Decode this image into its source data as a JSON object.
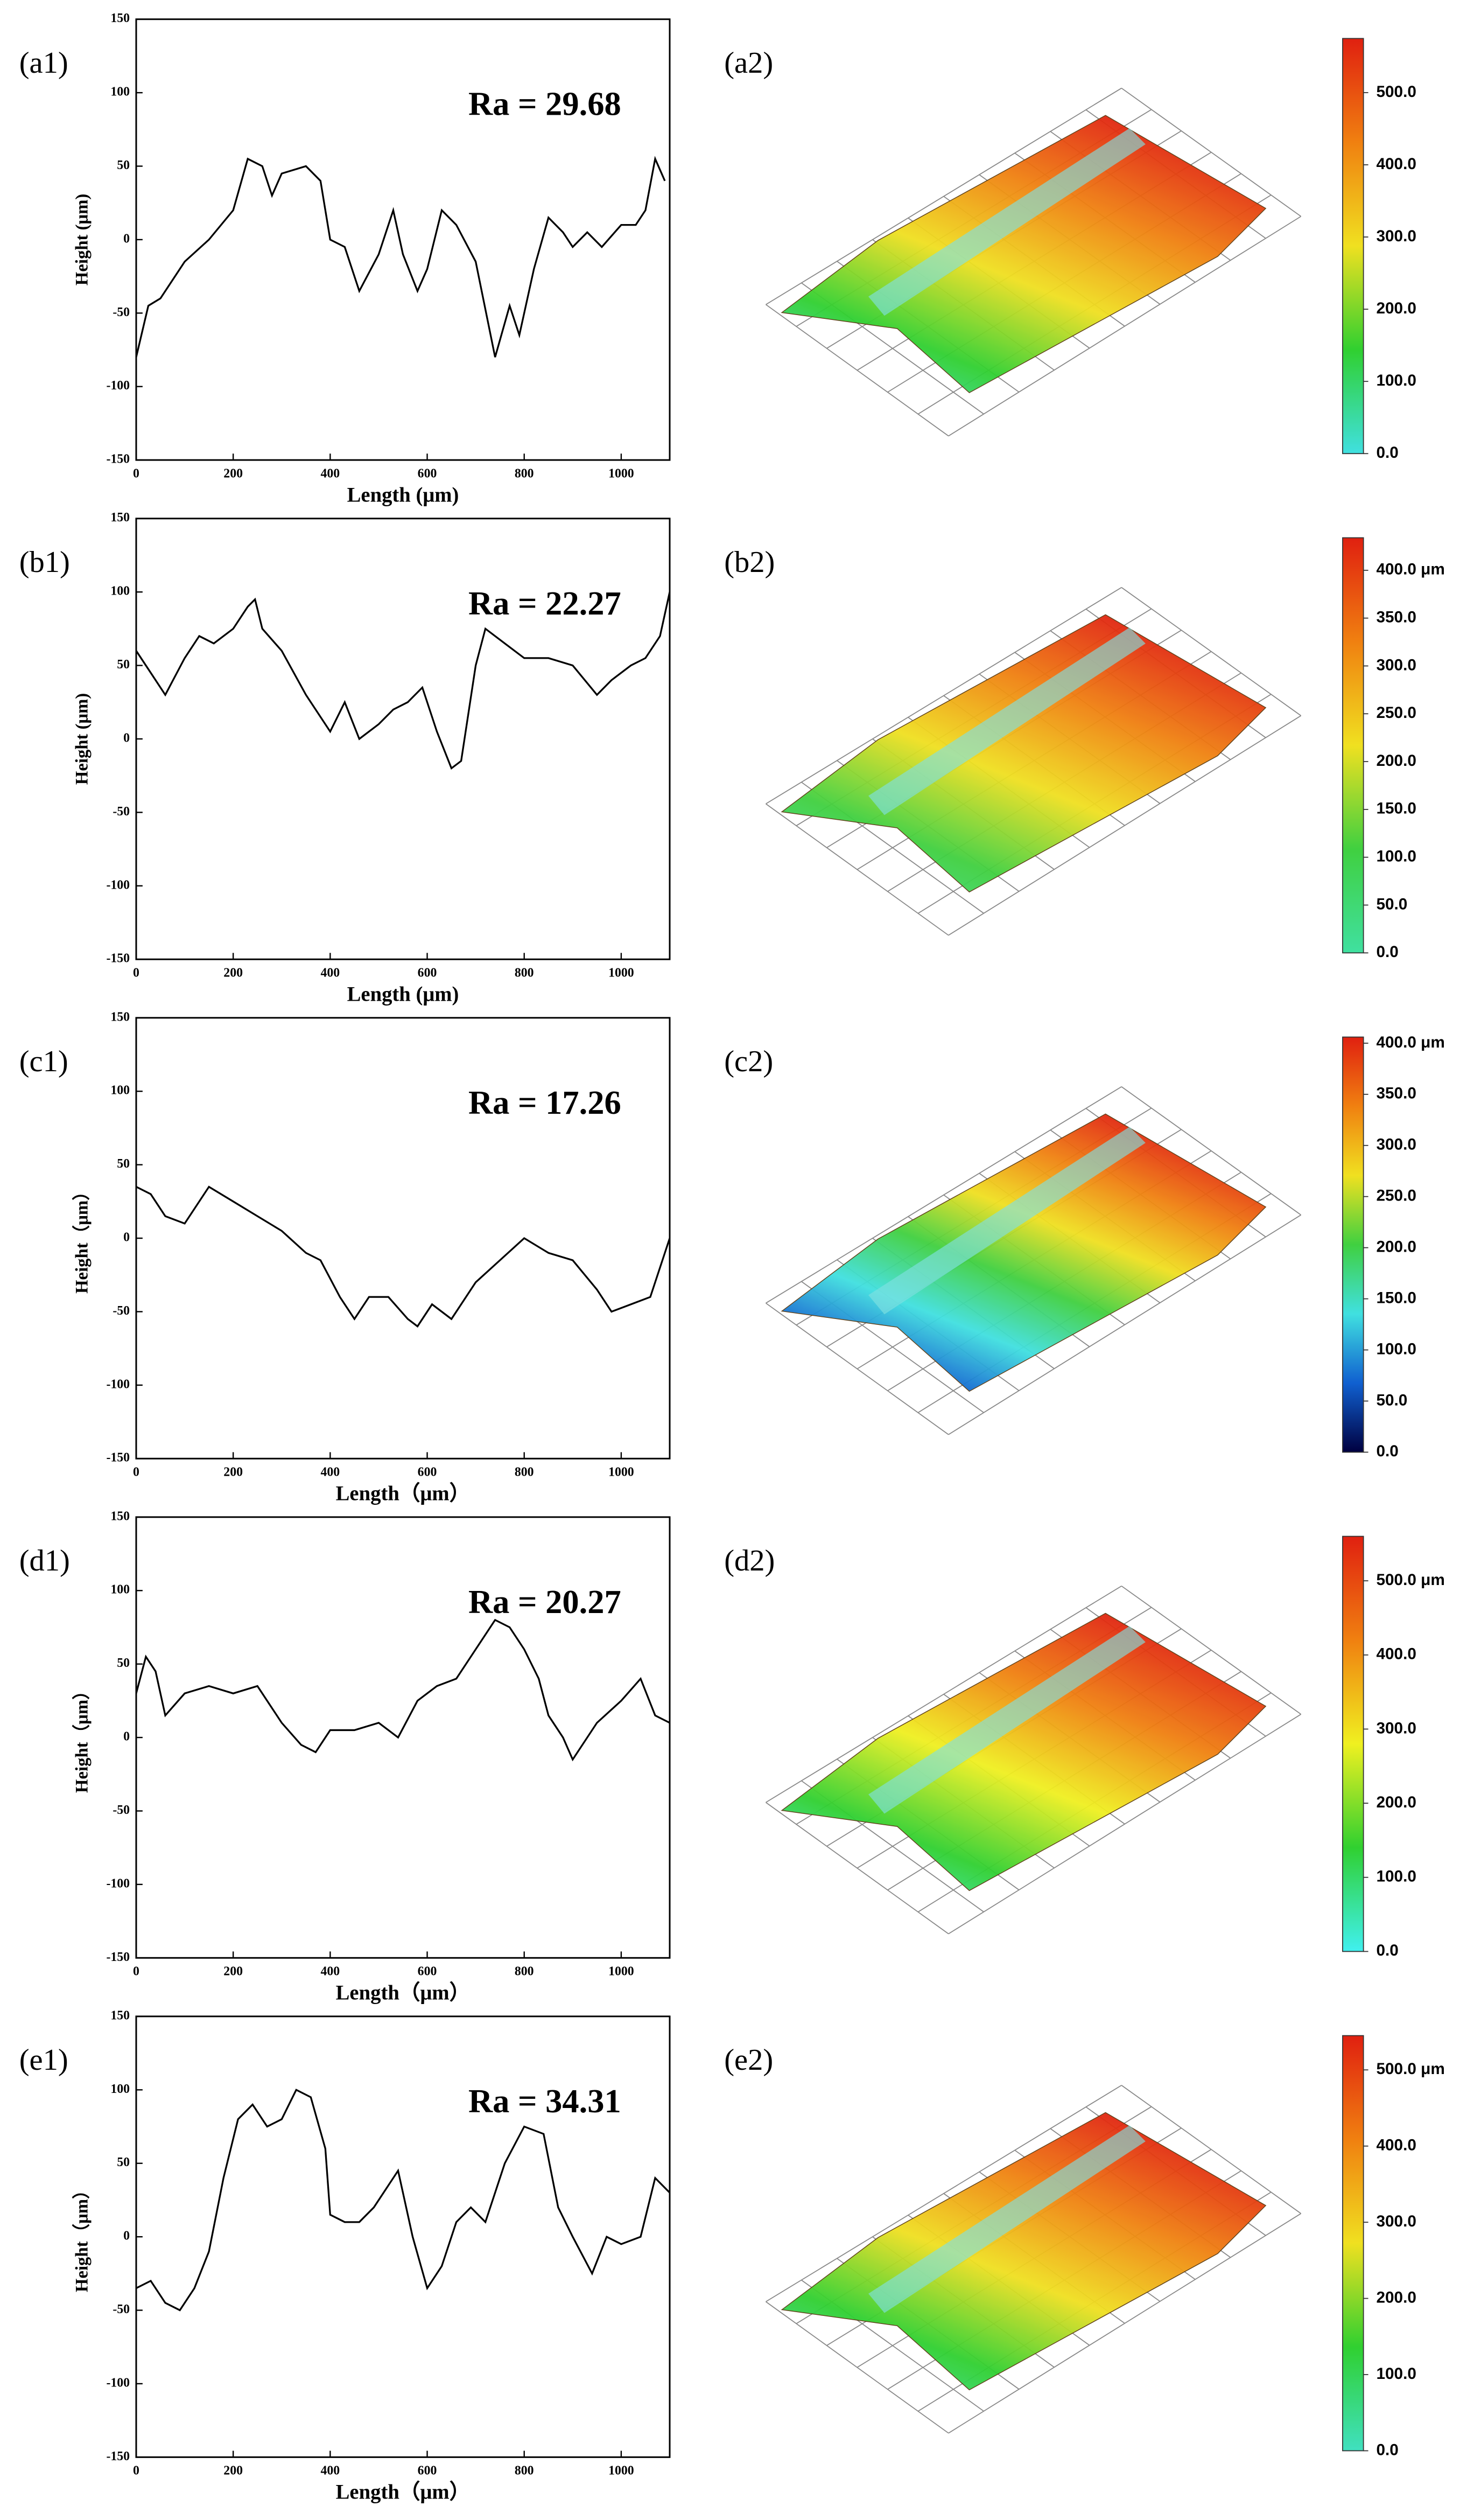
{
  "chart_data": [
    {
      "type": "line",
      "label": "(a1)",
      "annotation": "Ra = 29.68",
      "xlabel": "Length (μm)",
      "ylabel": "Height (μm)",
      "color": "#000000",
      "xlim": [
        0,
        1100
      ],
      "xticks": [
        0,
        200,
        400,
        600,
        800,
        1000
      ],
      "ylim": [
        -150,
        150
      ],
      "yticks": [
        -150,
        -100,
        -50,
        0,
        50,
        100,
        150
      ],
      "x": [
        0,
        25,
        50,
        100,
        150,
        200,
        230,
        260,
        280,
        300,
        350,
        380,
        400,
        430,
        460,
        500,
        530,
        550,
        580,
        600,
        630,
        660,
        700,
        740,
        770,
        790,
        820,
        850,
        880,
        900,
        930,
        960,
        1000,
        1030,
        1050,
        1070,
        1090
      ],
      "values": [
        -80,
        -45,
        -40,
        -15,
        0,
        20,
        55,
        50,
        30,
        45,
        50,
        40,
        0,
        -5,
        -35,
        -10,
        20,
        -10,
        -35,
        -20,
        20,
        10,
        -15,
        -80,
        -45,
        -65,
        -20,
        15,
        5,
        -5,
        5,
        -5,
        10,
        10,
        20,
        55,
        40
      ]
    },
    {
      "type": "surface",
      "label": "(a2)",
      "colors": [
        "#40e0e0",
        "#30d030",
        "#f0e020",
        "#f08010",
        "#e02010"
      ],
      "ylim": [
        0,
        575
      ],
      "yticks": [
        {
          "value": 0,
          "label": "0.0"
        },
        {
          "value": 100,
          "label": "100.0"
        },
        {
          "value": 200,
          "label": "200.0"
        },
        {
          "value": 300,
          "label": "300.0"
        },
        {
          "value": 400,
          "label": "400.0"
        },
        {
          "value": 500,
          "label": "500.0"
        }
      ]
    },
    {
      "type": "line",
      "label": "(b1)",
      "annotation": "Ra = 22.27",
      "xlabel": "Length (μm)",
      "ylabel": "Height (μm)",
      "color": "#000000",
      "xlim": [
        0,
        1100
      ],
      "xticks": [
        0,
        200,
        400,
        600,
        800,
        1000
      ],
      "ylim": [
        -150,
        150
      ],
      "yticks": [
        -150,
        -100,
        -50,
        0,
        50,
        100,
        150
      ],
      "x": [
        0,
        30,
        60,
        100,
        130,
        160,
        200,
        230,
        245,
        260,
        300,
        350,
        400,
        430,
        460,
        500,
        530,
        560,
        590,
        620,
        650,
        670,
        700,
        720,
        760,
        800,
        850,
        900,
        950,
        980,
        1020,
        1050,
        1080,
        1100
      ],
      "values": [
        60,
        45,
        30,
        55,
        70,
        65,
        75,
        90,
        95,
        75,
        60,
        30,
        5,
        25,
        0,
        10,
        20,
        25,
        35,
        5,
        -20,
        -15,
        50,
        75,
        65,
        55,
        55,
        50,
        30,
        40,
        50,
        55,
        70,
        100
      ]
    },
    {
      "type": "surface",
      "label": "(b2)",
      "colors": [
        "#40e0a0",
        "#40d040",
        "#f0e020",
        "#f08010",
        "#e02010"
      ],
      "ylim": [
        0,
        434
      ],
      "yticks": [
        {
          "value": 0,
          "label": "0.0"
        },
        {
          "value": 50,
          "label": "50.0"
        },
        {
          "value": 100,
          "label": "100.0"
        },
        {
          "value": 150,
          "label": "150.0"
        },
        {
          "value": 200,
          "label": "200.0"
        },
        {
          "value": 250,
          "label": "250.0"
        },
        {
          "value": 300,
          "label": "300.0"
        },
        {
          "value": 350,
          "label": "350.0"
        },
        {
          "value": 400,
          "label": "400.0 μm"
        }
      ]
    },
    {
      "type": "line",
      "label": "(c1)",
      "annotation": "Ra = 17.26",
      "xlabel": "Length（μm）",
      "ylabel": "Height（μm）",
      "color": "#000000",
      "xlim": [
        0,
        1100
      ],
      "xticks": [
        0,
        200,
        400,
        600,
        800,
        1000
      ],
      "ylim": [
        -150,
        150
      ],
      "yticks": [
        -150,
        -100,
        -50,
        0,
        50,
        100,
        150
      ],
      "x": [
        0,
        30,
        60,
        100,
        150,
        200,
        250,
        300,
        350,
        380,
        420,
        450,
        480,
        520,
        560,
        580,
        610,
        650,
        700,
        750,
        800,
        850,
        900,
        950,
        980,
        1020,
        1060,
        1100
      ],
      "values": [
        35,
        30,
        15,
        10,
        35,
        25,
        15,
        5,
        -10,
        -15,
        -40,
        -55,
        -40,
        -40,
        -55,
        -60,
        -45,
        -55,
        -30,
        -15,
        0,
        -10,
        -15,
        -35,
        -50,
        -45,
        -40,
        0
      ]
    },
    {
      "type": "surface",
      "label": "(c2)",
      "colors": [
        "#000040",
        "#1060d0",
        "#40e0e0",
        "#40d040",
        "#f0e020",
        "#f08010",
        "#e02010"
      ],
      "ylim": [
        0,
        406
      ],
      "yticks": [
        {
          "value": 0,
          "label": "0.0"
        },
        {
          "value": 50,
          "label": "50.0"
        },
        {
          "value": 100,
          "label": "100.0"
        },
        {
          "value": 150,
          "label": "150.0"
        },
        {
          "value": 200,
          "label": "200.0"
        },
        {
          "value": 250,
          "label": "250.0"
        },
        {
          "value": 300,
          "label": "300.0"
        },
        {
          "value": 350,
          "label": "350.0"
        },
        {
          "value": 400,
          "label": "400.0 μm"
        }
      ]
    },
    {
      "type": "line",
      "label": "(d1)",
      "annotation": "Ra = 20.27",
      "xlabel": "Length（μm）",
      "ylabel": "Height（μm）",
      "color": "#000000",
      "xlim": [
        0,
        1100
      ],
      "xticks": [
        0,
        200,
        400,
        600,
        800,
        1000
      ],
      "ylim": [
        -150,
        150
      ],
      "yticks": [
        -150,
        -100,
        -50,
        0,
        50,
        100,
        150
      ],
      "x": [
        0,
        20,
        40,
        60,
        100,
        150,
        200,
        250,
        300,
        340,
        370,
        400,
        450,
        500,
        540,
        580,
        620,
        660,
        700,
        740,
        770,
        800,
        830,
        850,
        880,
        900,
        950,
        1000,
        1040,
        1070,
        1100
      ],
      "values": [
        30,
        55,
        45,
        15,
        30,
        35,
        30,
        35,
        10,
        -5,
        -10,
        5,
        5,
        10,
        0,
        25,
        35,
        40,
        60,
        80,
        75,
        60,
        40,
        15,
        0,
        -15,
        10,
        25,
        40,
        15,
        10
      ]
    },
    {
      "type": "surface",
      "label": "(d2)",
      "colors": [
        "#40f0f0",
        "#30d030",
        "#f0f020",
        "#f08010",
        "#e02010"
      ],
      "ylim": [
        0,
        560
      ],
      "yticks": [
        {
          "value": 0,
          "label": "0.0"
        },
        {
          "value": 100,
          "label": "100.0"
        },
        {
          "value": 200,
          "label": "200.0"
        },
        {
          "value": 300,
          "label": "300.0"
        },
        {
          "value": 400,
          "label": "400.0"
        },
        {
          "value": 500,
          "label": "500.0 μm"
        }
      ]
    },
    {
      "type": "line",
      "label": "(e1)",
      "annotation": "Ra = 34.31",
      "xlabel": "Length（μm）",
      "ylabel": "Height（μm）",
      "color": "#000000",
      "xlim": [
        0,
        1100
      ],
      "xticks": [
        0,
        200,
        400,
        600,
        800,
        1000
      ],
      "ylim": [
        -150,
        150
      ],
      "yticks": [
        -150,
        -100,
        -50,
        0,
        50,
        100,
        150
      ],
      "x": [
        0,
        30,
        60,
        90,
        120,
        150,
        180,
        210,
        240,
        270,
        300,
        330,
        360,
        390,
        400,
        430,
        460,
        490,
        520,
        540,
        570,
        600,
        630,
        660,
        690,
        720,
        760,
        800,
        840,
        870,
        900,
        940,
        970,
        1000,
        1040,
        1070,
        1100
      ],
      "values": [
        -35,
        -30,
        -45,
        -50,
        -35,
        -10,
        40,
        80,
        90,
        75,
        80,
        100,
        95,
        60,
        15,
        10,
        10,
        20,
        35,
        45,
        0,
        -35,
        -20,
        10,
        20,
        10,
        50,
        75,
        70,
        20,
        0,
        -25,
        0,
        -5,
        0,
        40,
        30
      ]
    },
    {
      "type": "surface",
      "label": "(e2)",
      "colors": [
        "#40e0c0",
        "#30d030",
        "#f0e020",
        "#f08010",
        "#e02010"
      ],
      "ylim": [
        0,
        545
      ],
      "yticks": [
        {
          "value": 0,
          "label": "0.0"
        },
        {
          "value": 100,
          "label": "100.0"
        },
        {
          "value": 200,
          "label": "200.0"
        },
        {
          "value": 300,
          "label": "300.0"
        },
        {
          "value": 400,
          "label": "400.0"
        },
        {
          "value": 500,
          "label": "500.0 μm"
        }
      ]
    }
  ]
}
